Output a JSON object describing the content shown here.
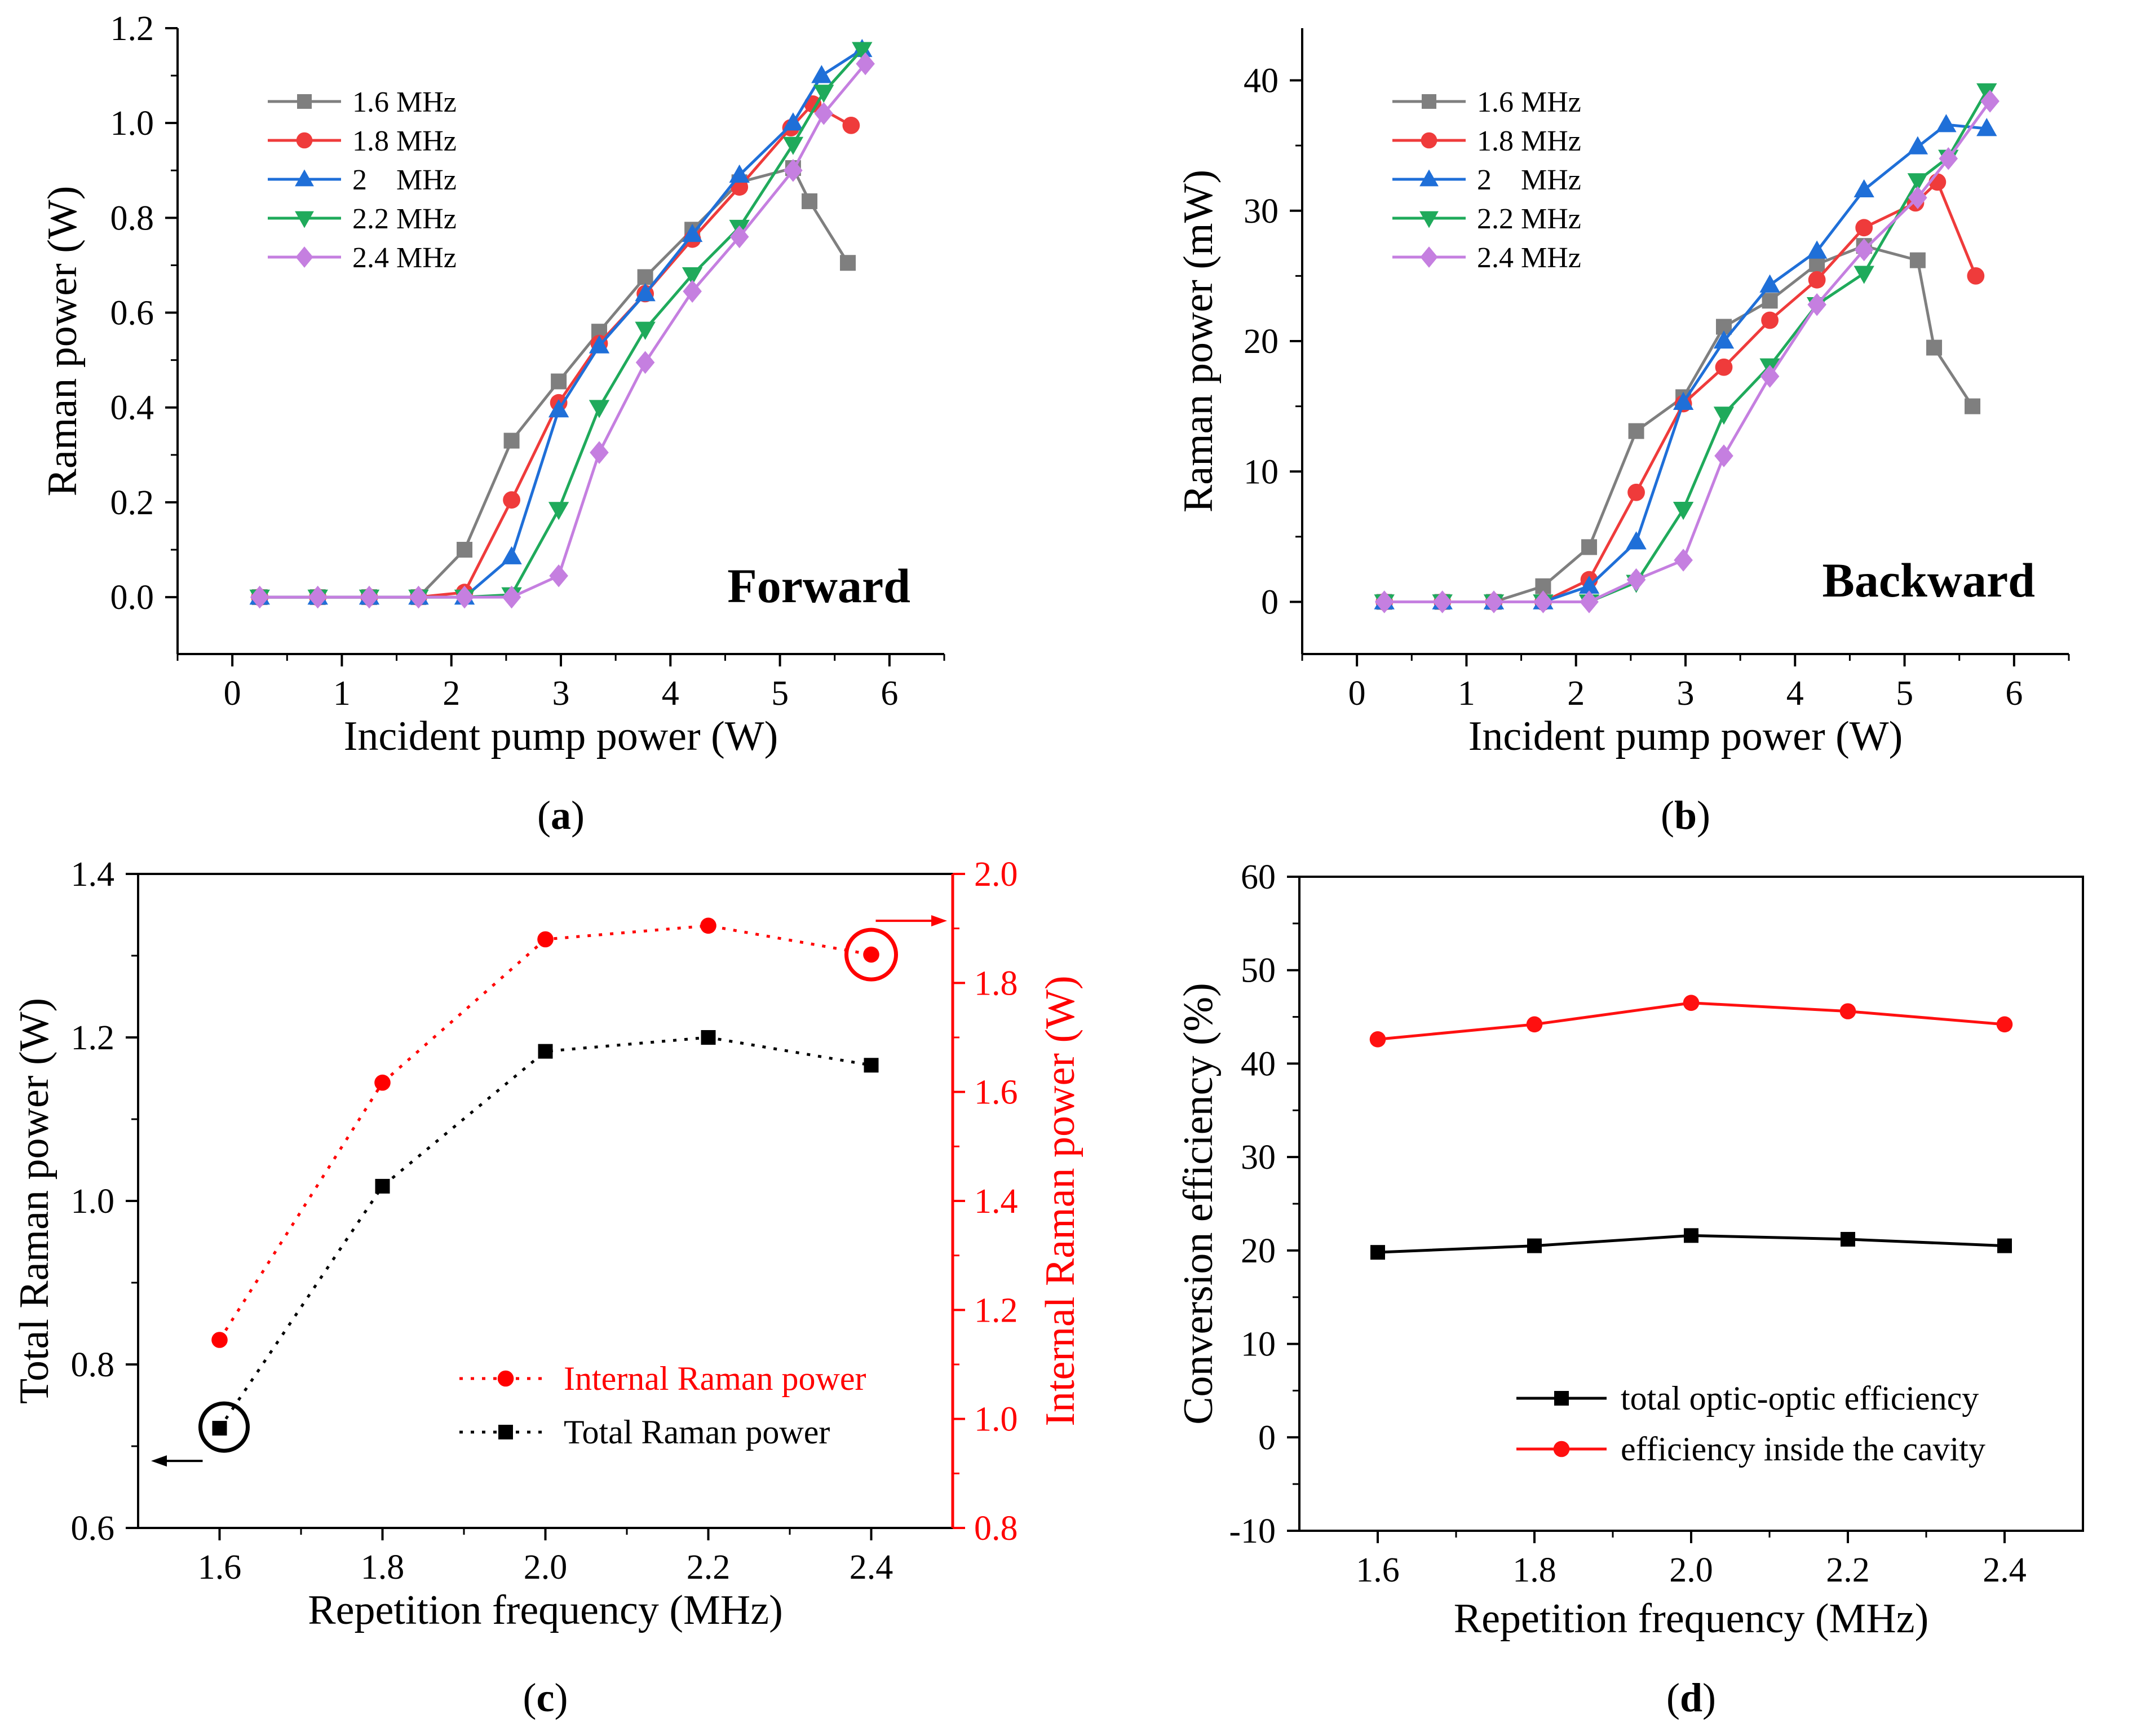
{
  "colors": {
    "f16": "#7f7f7f",
    "f18": "#ef3b3b",
    "f20": "#1f6fd8",
    "f22": "#1faa5b",
    "f24": "#c57fe0",
    "black": "#000000",
    "red": "#ff0000",
    "red_line": "#ff1010"
  },
  "chart_data": [
    {
      "id": "a",
      "type": "line",
      "panel_label": "(a)",
      "label_letter": "a",
      "xlabel": "Incident pump power (W)",
      "ylabel": "Raman power (W)",
      "annotation": "Forward",
      "xlim": [
        -0.5,
        6.5
      ],
      "ylim": [
        -0.12,
        1.2
      ],
      "xticks": [
        0,
        1,
        2,
        3,
        4,
        5,
        6
      ],
      "xtick_labels": [
        "0",
        "1",
        "2",
        "3",
        "4",
        "5",
        "6"
      ],
      "yticks": [
        0.0,
        0.2,
        0.4,
        0.6,
        0.8,
        1.0,
        1.2
      ],
      "ytick_labels": [
        "0.0",
        "0.2",
        "0.4",
        "0.6",
        "0.8",
        "1.0",
        "1.2"
      ],
      "legend_position": "top-left",
      "series": [
        {
          "name": "1.6 MHz",
          "color_key": "f16",
          "marker": "square",
          "x": [
            0.25,
            0.78,
            1.25,
            1.7,
            2.12,
            2.55,
            2.98,
            3.35,
            3.77,
            4.2,
            4.63,
            5.12,
            5.27,
            5.62
          ],
          "y": [
            0,
            0,
            0,
            0,
            0.1,
            0.33,
            0.455,
            0.56,
            0.675,
            0.775,
            0.875,
            0.905,
            0.835,
            0.705
          ]
        },
        {
          "name": "1.8 MHz",
          "color_key": "f18",
          "marker": "circle",
          "x": [
            0.25,
            0.78,
            1.25,
            1.7,
            2.12,
            2.55,
            2.98,
            3.35,
            3.77,
            4.2,
            4.63,
            5.1,
            5.3,
            5.65
          ],
          "y": [
            0,
            0,
            0,
            0,
            0.01,
            0.205,
            0.41,
            0.535,
            0.64,
            0.755,
            0.865,
            0.99,
            1.04,
            0.995
          ]
        },
        {
          "name": "2    MHz",
          "color_key": "f20",
          "marker": "triangle-up",
          "x": [
            0.25,
            0.78,
            1.25,
            1.7,
            2.12,
            2.55,
            2.98,
            3.35,
            3.77,
            4.2,
            4.63,
            5.12,
            5.38,
            5.75
          ],
          "y": [
            0,
            0,
            0,
            0,
            0,
            0.085,
            0.395,
            0.53,
            0.64,
            0.765,
            0.89,
            1.0,
            1.1,
            1.155
          ]
        },
        {
          "name": "2.2 MHz",
          "color_key": "f22",
          "marker": "triangle-down",
          "x": [
            0.25,
            0.78,
            1.25,
            1.7,
            2.12,
            2.55,
            2.98,
            3.35,
            3.77,
            4.2,
            4.63,
            5.12,
            5.4,
            5.75
          ],
          "y": [
            0,
            0,
            0,
            0,
            0,
            0.005,
            0.185,
            0.4,
            0.565,
            0.68,
            0.78,
            0.955,
            1.065,
            1.155
          ]
        },
        {
          "name": "2.4 MHz",
          "color_key": "f24",
          "marker": "diamond",
          "x": [
            0.25,
            0.78,
            1.25,
            1.7,
            2.12,
            2.55,
            2.98,
            3.35,
            3.77,
            4.2,
            4.63,
            5.12,
            5.4,
            5.78
          ],
          "y": [
            0,
            0,
            0,
            0,
            0,
            0,
            0.045,
            0.305,
            0.495,
            0.645,
            0.76,
            0.9,
            1.02,
            1.125
          ]
        }
      ]
    },
    {
      "id": "b",
      "type": "line",
      "panel_label": "(b)",
      "label_letter": "b",
      "xlabel": "Incident pump power (W)",
      "ylabel": "Raman power (mW)",
      "annotation": "Backward",
      "xlim": [
        -0.5,
        6.5
      ],
      "ylim": [
        -4,
        44
      ],
      "xticks": [
        0,
        1,
        2,
        3,
        4,
        5,
        6
      ],
      "xtick_labels": [
        "0",
        "1",
        "2",
        "3",
        "4",
        "5",
        "6"
      ],
      "yticks": [
        0,
        10,
        20,
        30,
        40
      ],
      "ytick_labels": [
        "0",
        "10",
        "20",
        "30",
        "40"
      ],
      "legend_position": "top-left",
      "series": [
        {
          "name": "1.6 MHz",
          "color_key": "f16",
          "marker": "square",
          "x": [
            0.25,
            0.78,
            1.25,
            1.7,
            2.12,
            2.55,
            2.98,
            3.35,
            3.77,
            4.2,
            4.63,
            5.12,
            5.27,
            5.62
          ],
          "y": [
            0,
            0,
            0,
            1.2,
            4.2,
            13.1,
            15.7,
            21.1,
            23.1,
            25.9,
            27.3,
            26.2,
            19.5,
            15.0
          ]
        },
        {
          "name": "1.8 MHz",
          "color_key": "f18",
          "marker": "circle",
          "x": [
            0.25,
            0.78,
            1.25,
            1.7,
            2.12,
            2.55,
            2.98,
            3.35,
            3.77,
            4.2,
            4.63,
            5.1,
            5.3,
            5.65
          ],
          "y": [
            0,
            0,
            0,
            0,
            1.7,
            8.4,
            15.2,
            18.0,
            21.6,
            24.7,
            28.7,
            30.6,
            32.2,
            25.0
          ]
        },
        {
          "name": "2    MHz",
          "color_key": "f20",
          "marker": "triangle-up",
          "x": [
            0.25,
            0.78,
            1.25,
            1.7,
            2.12,
            2.55,
            2.98,
            3.35,
            3.77,
            4.2,
            4.63,
            5.12,
            5.38,
            5.75
          ],
          "y": [
            0,
            0,
            0,
            0,
            1.2,
            4.6,
            15.3,
            20.0,
            24.3,
            26.9,
            31.6,
            34.9,
            36.6,
            36.3
          ]
        },
        {
          "name": "2.2 MHz",
          "color_key": "f22",
          "marker": "triangle-down",
          "x": [
            0.25,
            0.78,
            1.25,
            1.7,
            2.12,
            2.55,
            2.98,
            3.35,
            3.77,
            4.2,
            4.63,
            5.12,
            5.4,
            5.75
          ],
          "y": [
            0,
            0,
            0,
            0,
            0,
            1.5,
            7.1,
            14.4,
            18.1,
            22.8,
            25.2,
            32.3,
            34.1,
            39.2
          ]
        },
        {
          "name": "2.4 MHz",
          "color_key": "f24",
          "marker": "diamond",
          "x": [
            0.25,
            0.78,
            1.25,
            1.7,
            2.12,
            2.55,
            2.98,
            3.35,
            3.77,
            4.2,
            4.63,
            5.12,
            5.4,
            5.78
          ],
          "y": [
            0,
            0,
            0,
            0,
            0,
            1.7,
            3.2,
            11.2,
            17.3,
            22.8,
            27.0,
            31.0,
            34.0,
            38.4
          ]
        }
      ]
    },
    {
      "id": "c",
      "type": "line",
      "panel_label": "(c)",
      "label_letter": "c",
      "xlabel": "Repetition frequency (MHz)",
      "ylabel": "Total Raman power (W)",
      "ylabel_right": "Internal Raman power (W)",
      "xlim": [
        1.5,
        2.5
      ],
      "ylim": [
        0.6,
        1.4
      ],
      "ylim_right": [
        0.8,
        2.0
      ],
      "xticks": [
        1.6,
        1.8,
        2.0,
        2.2,
        2.4
      ],
      "xtick_labels": [
        "1.6",
        "1.8",
        "2.0",
        "2.2",
        "2.4"
      ],
      "yticks": [
        0.6,
        0.8,
        1.0,
        1.2,
        1.4
      ],
      "ytick_labels": [
        "0.6",
        "0.8",
        "1.0",
        "1.2",
        "1.4"
      ],
      "yticks_right": [
        0.8,
        1.0,
        1.2,
        1.4,
        1.6,
        1.8,
        2.0
      ],
      "ytick_labels_right": [
        "0.8",
        "1.0",
        "1.2",
        "1.4",
        "1.6",
        "1.8",
        "2.0"
      ],
      "legend_position": "bottom-right",
      "series": [
        {
          "name": "Internal Raman power",
          "axis": "right",
          "color_key": "red",
          "marker": "circle",
          "dashed": true,
          "x": [
            1.6,
            1.8,
            2.0,
            2.2,
            2.4
          ],
          "y": [
            1.145,
            1.617,
            1.88,
            1.905,
            1.852
          ]
        },
        {
          "name": "Total Raman power",
          "axis": "left",
          "color_key": "black",
          "marker": "square",
          "dashed": true,
          "x": [
            1.6,
            1.8,
            2.0,
            2.2,
            2.4
          ],
          "y": [
            0.722,
            1.018,
            1.183,
            1.2,
            1.166
          ]
        }
      ]
    },
    {
      "id": "d",
      "type": "line",
      "panel_label": "(d)",
      "label_letter": "d",
      "xlabel": "Repetition frequency (MHz)",
      "ylabel": "Conversion efficiency (%)",
      "xlim": [
        1.5,
        2.5
      ],
      "ylim": [
        -10,
        60
      ],
      "xticks": [
        1.6,
        1.8,
        2.0,
        2.2,
        2.4
      ],
      "xtick_labels": [
        "1.6",
        "1.8",
        "2.0",
        "2.2",
        "2.4"
      ],
      "yticks": [
        -10,
        0,
        10,
        20,
        30,
        40,
        50,
        60
      ],
      "ytick_labels": [
        "-10",
        "0",
        "10",
        "20",
        "30",
        "40",
        "50",
        "60"
      ],
      "legend_position": "bottom-right",
      "series": [
        {
          "name": "total optic-optic efficiency",
          "color_key": "black",
          "marker": "square",
          "x": [
            1.6,
            1.8,
            2.0,
            2.2,
            2.4
          ],
          "y": [
            19.8,
            20.5,
            21.6,
            21.2,
            20.5
          ]
        },
        {
          "name": "efficiency inside the cavity",
          "color_key": "red_line",
          "marker": "circle",
          "x": [
            1.6,
            1.8,
            2.0,
            2.2,
            2.4
          ],
          "y": [
            42.6,
            44.2,
            46.5,
            45.6,
            44.2
          ]
        }
      ]
    }
  ]
}
